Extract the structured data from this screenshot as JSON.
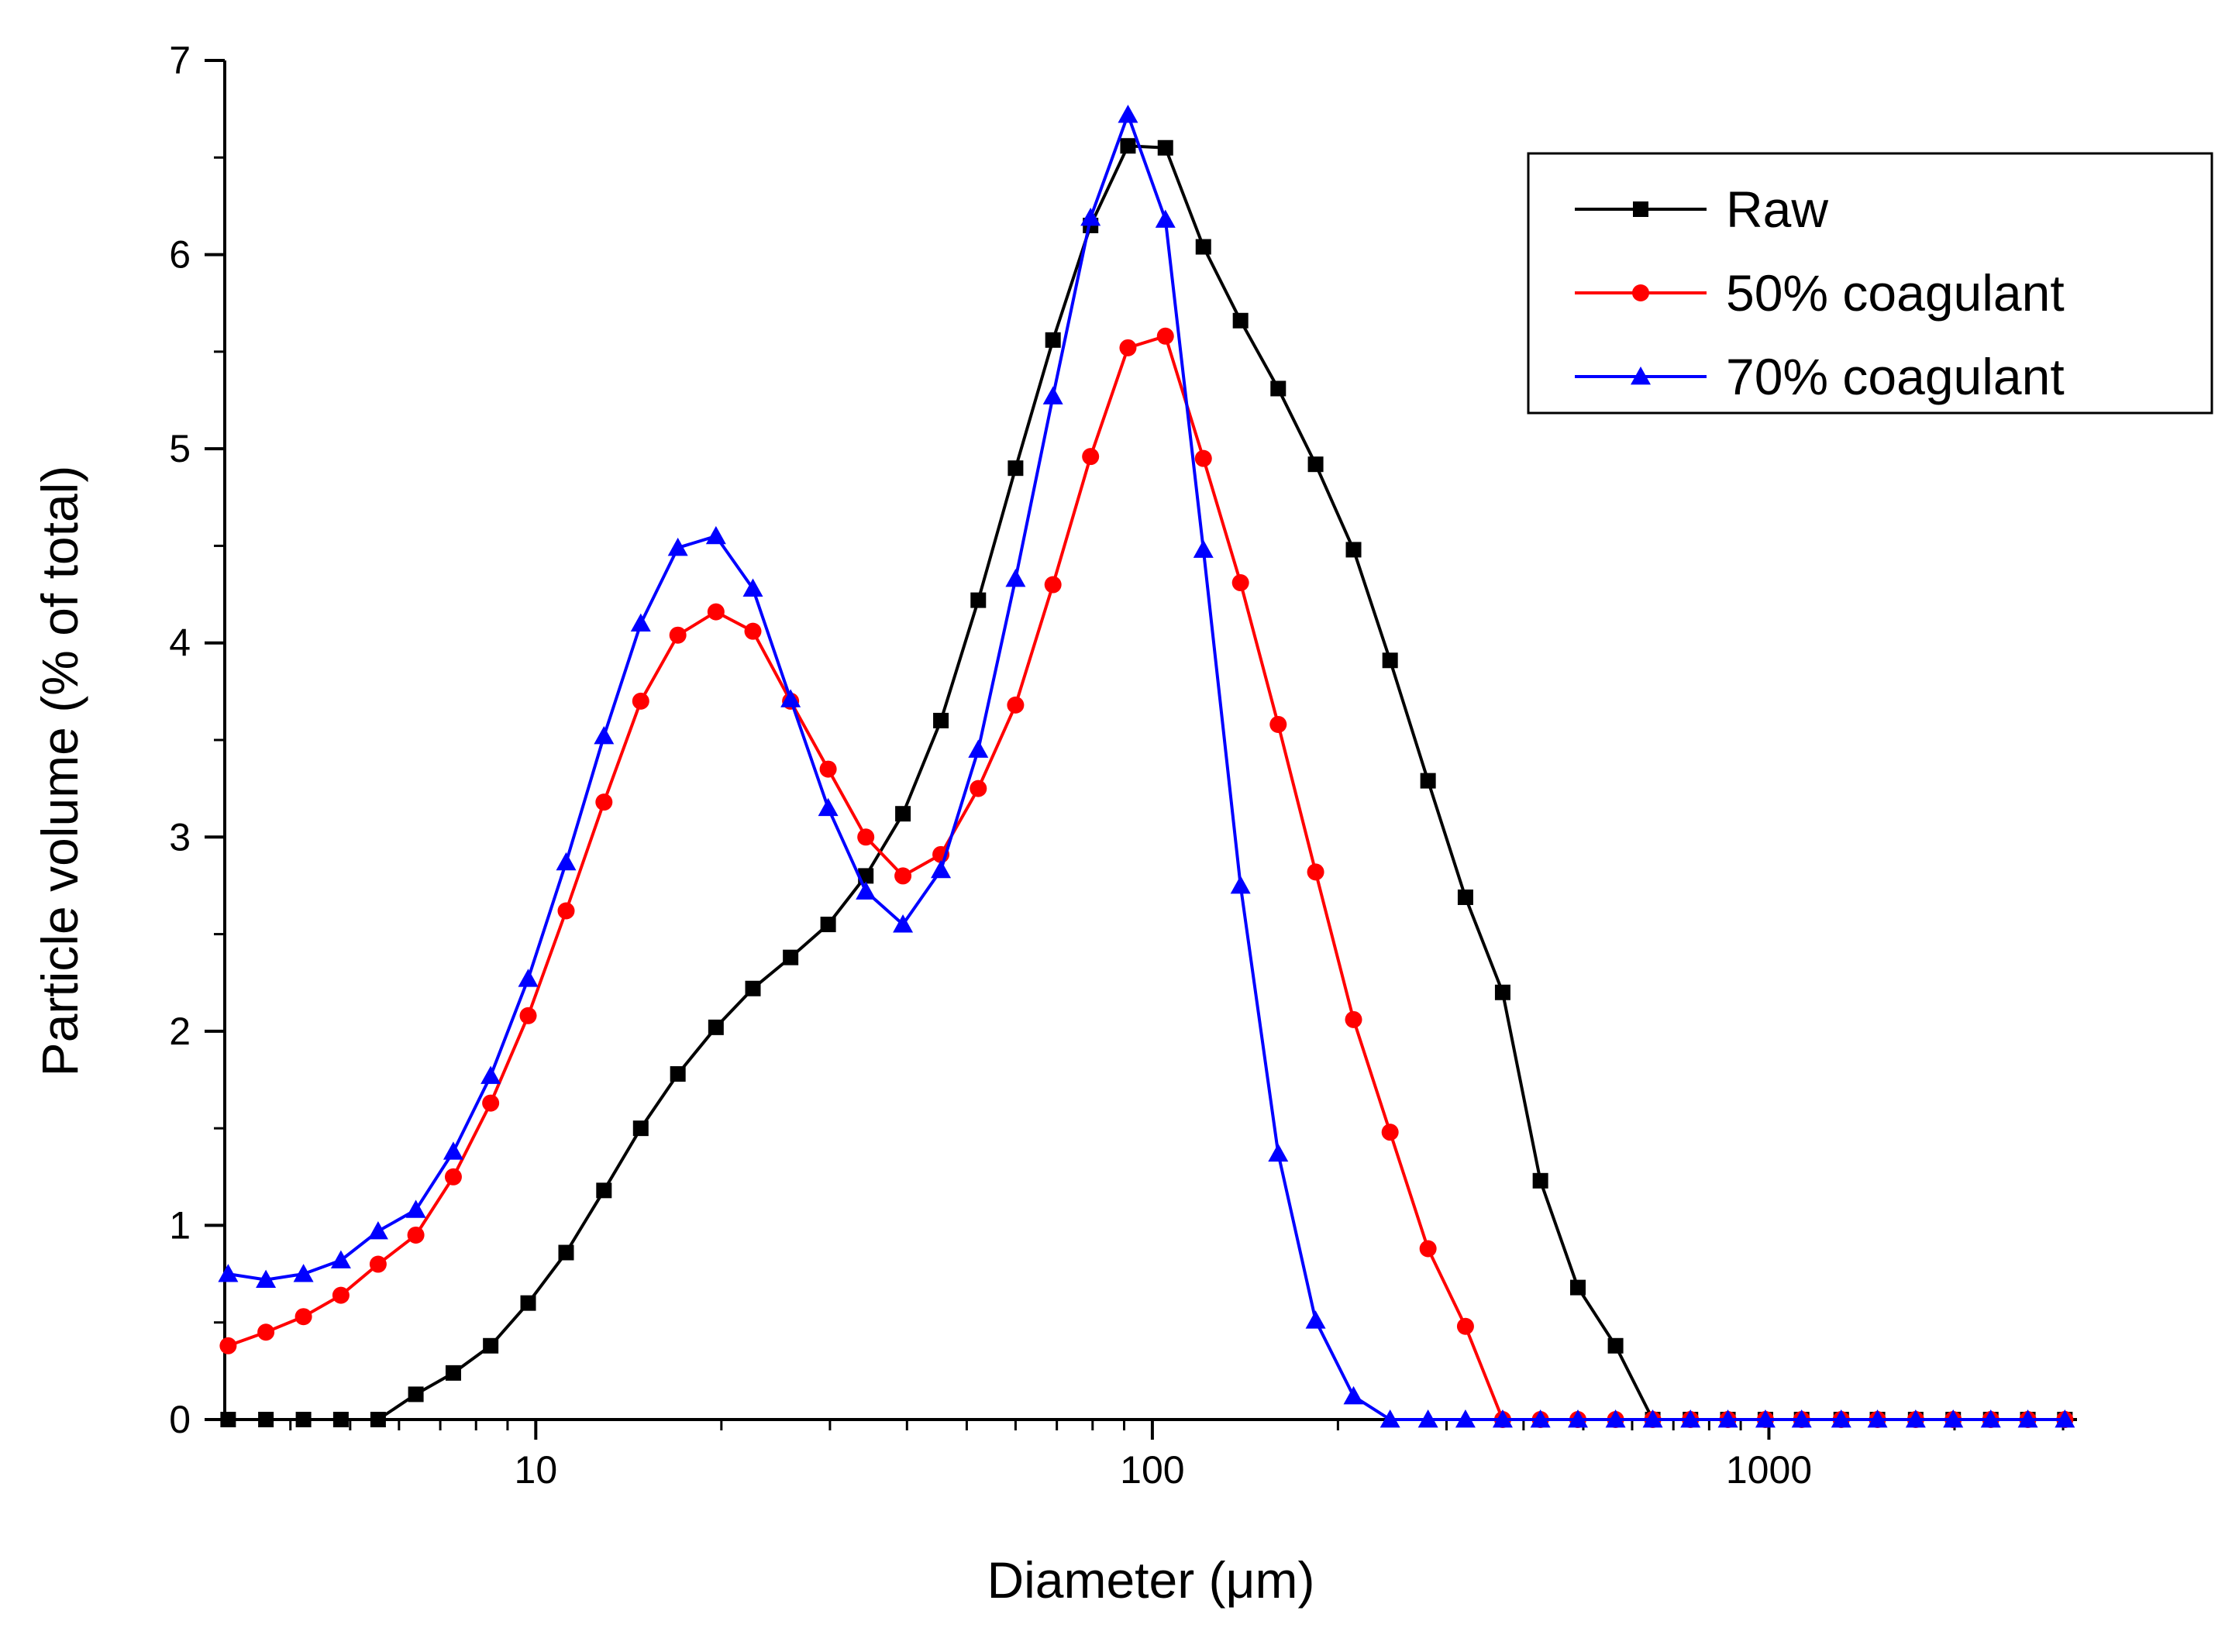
{
  "chart_data": {
    "type": "line",
    "title": "",
    "xlabel": "Diameter (μm)",
    "ylabel": "Particle volume (% of total)",
    "xscale": "log",
    "xlim": [
      3.13,
      3160
    ],
    "ylim": [
      0,
      7
    ],
    "xticks": [
      10,
      100,
      1000
    ],
    "xtick_labels": [
      "10",
      "100",
      "1000"
    ],
    "yticks": [
      0,
      1,
      2,
      3,
      4,
      5,
      6,
      7
    ],
    "ytick_labels": [
      "0",
      "1",
      "2",
      "3",
      "4",
      "5",
      "6",
      "7"
    ],
    "legend_position": "top-right",
    "x": [
      3.17,
      3.65,
      4.2,
      4.83,
      5.55,
      6.39,
      7.35,
      8.45,
      9.72,
      11.2,
      12.9,
      14.8,
      17.0,
      19.6,
      22.5,
      25.9,
      29.8,
      34.3,
      39.4,
      45.4,
      52.2,
      60.0,
      69.0,
      79.4,
      91.3,
      105,
      121,
      139,
      160,
      184,
      212,
      243,
      280,
      322,
      370,
      426,
      490,
      564,
      648,
      746,
      858,
      987,
      1130,
      1310,
      1500,
      1730,
      1990,
      2290,
      2630,
      3020
    ],
    "series": [
      {
        "name": "Raw",
        "color": "#000000",
        "marker": "square",
        "values": [
          0,
          0,
          0,
          0,
          0,
          0.13,
          0.24,
          0.38,
          0.6,
          0.86,
          1.18,
          1.5,
          1.78,
          2.02,
          2.22,
          2.38,
          2.55,
          2.8,
          3.12,
          3.6,
          4.22,
          4.9,
          5.56,
          6.15,
          6.56,
          6.55,
          6.04,
          5.66,
          5.31,
          4.92,
          4.48,
          3.91,
          3.29,
          2.69,
          2.2,
          1.23,
          0.68,
          0.38,
          0,
          0,
          0,
          0,
          0,
          0,
          0,
          0,
          0,
          0,
          0,
          0
        ]
      },
      {
        "name": "50% coagulant",
        "color": "#ff0000",
        "marker": "circle",
        "values": [
          0.38,
          0.45,
          0.53,
          0.64,
          0.8,
          0.95,
          1.25,
          1.63,
          2.08,
          2.62,
          3.18,
          3.7,
          4.04,
          4.16,
          4.06,
          3.7,
          3.35,
          3.0,
          2.8,
          2.91,
          3.25,
          3.68,
          4.3,
          4.96,
          5.52,
          5.58,
          4.95,
          4.31,
          3.58,
          2.82,
          2.06,
          1.48,
          0.88,
          0.48,
          0,
          0,
          0,
          0,
          0,
          0,
          0,
          0,
          0,
          0,
          0,
          0,
          0,
          0,
          0,
          0
        ]
      },
      {
        "name": "70% coagulant",
        "color": "#0000ff",
        "marker": "triangle",
        "values": [
          0.75,
          0.72,
          0.75,
          0.82,
          0.97,
          1.08,
          1.38,
          1.77,
          2.27,
          2.87,
          3.52,
          4.1,
          4.49,
          4.55,
          4.28,
          3.71,
          3.15,
          2.72,
          2.55,
          2.83,
          3.45,
          4.33,
          5.27,
          6.19,
          6.72,
          6.18,
          4.48,
          2.75,
          1.37,
          0.51,
          0.12,
          0,
          0,
          0,
          0,
          0,
          0,
          0,
          0,
          0,
          0,
          0,
          0,
          0,
          0,
          0,
          0,
          0,
          0,
          0
        ]
      }
    ]
  }
}
